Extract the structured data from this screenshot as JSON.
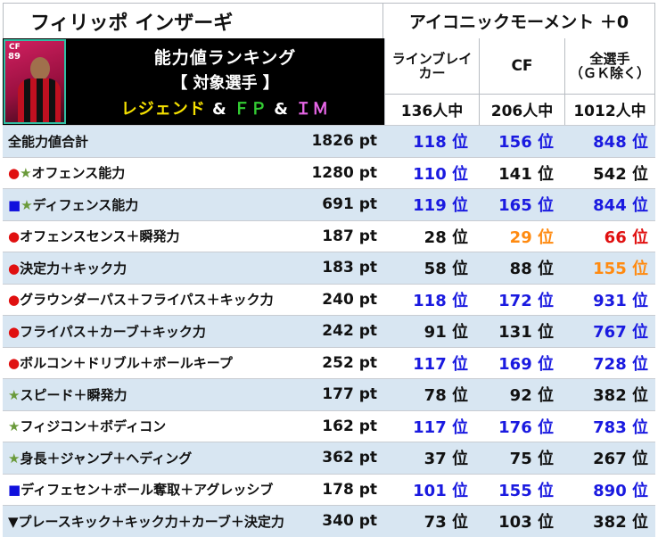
{
  "title": {
    "player": "フィリッポ インザーギ",
    "mode": "アイコニックモーメント ＋0"
  },
  "card": {
    "position": "CF",
    "ovr": "89"
  },
  "ranking_title": {
    "line1": "能力値ランキング",
    "line2": "【 対象選手 】",
    "legend": "レジェンド",
    "amp1": " & ",
    "fp": "ＦＰ",
    "amp2": " & ",
    "im": "ＩＭ"
  },
  "columns": [
    {
      "label": "ラインブレイ\nカー",
      "count": "136人中"
    },
    {
      "label": "CF",
      "count": "206人中"
    },
    {
      "label": "全選手\n（ＧＫ除く）",
      "count": "1012人中"
    }
  ],
  "rows": [
    {
      "marker": "",
      "marker2": "",
      "m1color": "black",
      "label": "全能力値合計",
      "pt": "1826 pt",
      "r1": "118 位",
      "r1c": "blue",
      "r2": "156 位",
      "r2c": "blue",
      "r3": "848 位",
      "r3c": "blue"
    },
    {
      "marker": "●",
      "marker2": "★",
      "m1color": "red",
      "label": "オフェンス能力",
      "pt": "1280 pt",
      "r1": "110 位",
      "r1c": "blue",
      "r2": "141 位",
      "r2c": "black",
      "r3": "542 位",
      "r3c": "black"
    },
    {
      "marker": "■",
      "marker2": "★",
      "m1color": "blue",
      "label": "ディフェンス能力",
      "pt": "691 pt",
      "r1": "119 位",
      "r1c": "blue",
      "r2": "165 位",
      "r2c": "blue",
      "r3": "844 位",
      "r3c": "blue"
    },
    {
      "marker": "●",
      "marker2": "",
      "m1color": "red",
      "label": "オフェンスセンス＋瞬発力",
      "pt": "187 pt",
      "r1": "28 位",
      "r1c": "black",
      "r2": "29 位",
      "r2c": "orange",
      "r3": "66 位",
      "r3c": "red"
    },
    {
      "marker": "●",
      "marker2": "",
      "m1color": "red",
      "label": "決定力＋キック力",
      "pt": "183 pt",
      "r1": "58 位",
      "r1c": "black",
      "r2": "88 位",
      "r2c": "black",
      "r3": "155 位",
      "r3c": "orange"
    },
    {
      "marker": "●",
      "marker2": "",
      "m1color": "red",
      "label": "グラウンダーパス＋フライパス＋キック力",
      "pt": "240 pt",
      "r1": "118 位",
      "r1c": "blue",
      "r2": "172 位",
      "r2c": "blue",
      "r3": "931 位",
      "r3c": "blue"
    },
    {
      "marker": "●",
      "marker2": "",
      "m1color": "red",
      "label": "フライパス＋カーブ＋キック力",
      "pt": "242 pt",
      "r1": "91 位",
      "r1c": "black",
      "r2": "131 位",
      "r2c": "black",
      "r3": "767 位",
      "r3c": "blue"
    },
    {
      "marker": "●",
      "marker2": "",
      "m1color": "red",
      "label": "ボルコン＋ドリブル＋ボールキープ",
      "pt": "252 pt",
      "r1": "117 位",
      "r1c": "blue",
      "r2": "169 位",
      "r2c": "blue",
      "r3": "728 位",
      "r3c": "blue"
    },
    {
      "marker": "★",
      "marker2": "",
      "m1color": "green",
      "label": "スピード＋瞬発力",
      "pt": "177 pt",
      "r1": "78 位",
      "r1c": "black",
      "r2": "92 位",
      "r2c": "black",
      "r3": "382 位",
      "r3c": "black"
    },
    {
      "marker": "★",
      "marker2": "",
      "m1color": "green",
      "label": "フィジコン＋ボディコン",
      "pt": "162 pt",
      "r1": "117 位",
      "r1c": "blue",
      "r2": "176 位",
      "r2c": "blue",
      "r3": "783 位",
      "r3c": "blue"
    },
    {
      "marker": "★",
      "marker2": "",
      "m1color": "green",
      "label": "身長＋ジャンプ＋ヘディング",
      "pt": "362 pt",
      "r1": "37 位",
      "r1c": "black",
      "r2": "75 位",
      "r2c": "black",
      "r3": "267 位",
      "r3c": "black"
    },
    {
      "marker": "■",
      "marker2": "",
      "m1color": "blue",
      "label": "ディフェセン＋ボール奪取＋アグレッシブ",
      "pt": "178 pt",
      "r1": "101 位",
      "r1c": "blue",
      "r2": "155 位",
      "r2c": "blue",
      "r3": "890 位",
      "r3c": "blue"
    },
    {
      "marker": "▼",
      "marker2": "",
      "m1color": "black",
      "label": "プレースキック＋キック力＋カーブ＋決定力",
      "pt": "340 pt",
      "r1": "73 位",
      "r1c": "black",
      "r2": "103 位",
      "r2c": "black",
      "r3": "382 位",
      "r3c": "black"
    }
  ]
}
